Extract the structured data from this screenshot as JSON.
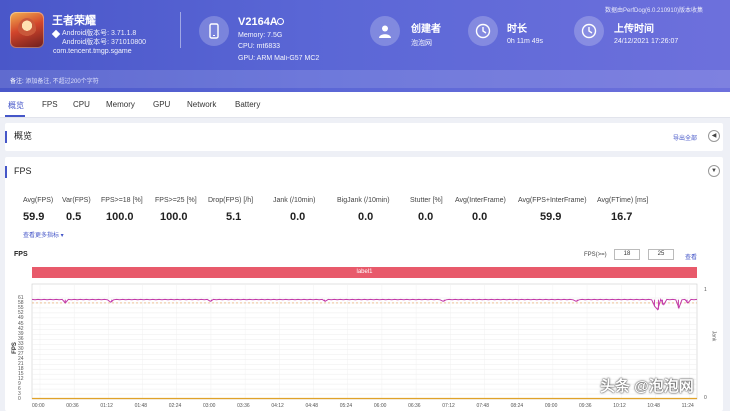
{
  "header": {
    "app_name": "王者荣耀",
    "android_version_line": "Android版本号: 3.71.1.8",
    "android_build_line": "Android版本号: 371010800",
    "package": "com.tencent.tmgp.sgame",
    "device_name": "V2164A",
    "memory": "Memory: 7.5G",
    "cpu": "CPU: mt6833",
    "gpu": "GPU: ARM Mali-G57 MC2",
    "creator_title": "创建者",
    "creator_value": "泡泡网",
    "duration_title": "时长",
    "duration_value": "0h 11m 49s",
    "upload_title": "上传时间",
    "upload_value": "24/12/2021 17:26:07",
    "perfdog_note": "数据由PerfDog(6.0.210910)版本收集",
    "remark_label": "备注:",
    "remark_placeholder": "添加备注, 不超过200个字符"
  },
  "tabs": [
    "概览",
    "FPS",
    "CPU",
    "Memory",
    "GPU",
    "Network",
    "Battery"
  ],
  "overview": {
    "title": "概览",
    "export_label": "导出全部",
    "toggle_glyph": "◀"
  },
  "fps_section": {
    "title": "FPS",
    "toggle_glyph": "▼",
    "metrics": [
      {
        "label": "Avg(FPS)",
        "value": "59.9"
      },
      {
        "label": "Var(FPS)",
        "value": "0.5"
      },
      {
        "label": "FPS>=18 [%]",
        "value": "100.0"
      },
      {
        "label": "FPS>=25 [%]",
        "value": "100.0"
      },
      {
        "label": "Drop(FPS) [/h]",
        "value": "5.1"
      },
      {
        "label": "Jank (/10min)",
        "value": "0.0"
      },
      {
        "label": "BigJank (/10min)",
        "value": "0.0"
      },
      {
        "label": "Stutter [%]",
        "value": "0.0"
      },
      {
        "label": "Avg(InterFrame)",
        "value": "0.0"
      },
      {
        "label": "Avg(FPS+InterFrame)",
        "value": "59.9"
      },
      {
        "label": "Avg(FTime) [ms]",
        "value": "16.7"
      }
    ],
    "more_link": "查看更多指标 ▾",
    "chart_title": "FPS",
    "filter_label": "FPS(>=)",
    "filter_value_1": "18",
    "filter_value_2": "25",
    "query_label": "查看",
    "band_label": "label1",
    "y_axis_label": "FPS",
    "right_axis_label": "Jank",
    "right_ticks": [
      "1",
      "0"
    ]
  },
  "chart_data": {
    "type": "line",
    "x_labels": [
      "00:00",
      "00:36",
      "01:12",
      "01:48",
      "02:24",
      "03:00",
      "03:36",
      "04:12",
      "04:48",
      "05:24",
      "06:00",
      "06:36",
      "07:12",
      "07:48",
      "08:24",
      "09:00",
      "09:36",
      "10:12",
      "10:48",
      "11:24"
    ],
    "y_ticks": [
      61,
      58,
      55,
      52,
      49,
      45,
      42,
      39,
      36,
      33,
      30,
      27,
      24,
      21,
      18,
      15,
      12,
      9,
      6,
      3,
      0
    ],
    "ylim": [
      0,
      61
    ],
    "series": [
      {
        "color": "#c23aa8",
        "base": 60,
        "dips": [
          {
            "x": 0.05,
            "value": 58
          },
          {
            "x": 0.12,
            "value": 58.5
          },
          {
            "x": 0.27,
            "value": 59
          },
          {
            "x": 0.44,
            "value": 59
          },
          {
            "x": 0.62,
            "value": 59
          },
          {
            "x": 0.82,
            "value": 59
          },
          {
            "x": 0.936,
            "value": 56
          },
          {
            "x": 0.942,
            "value": 54
          },
          {
            "x": 0.948,
            "value": 57
          },
          {
            "x": 0.972,
            "value": 55
          },
          {
            "x": 0.985,
            "value": 58
          }
        ]
      },
      {
        "color": "#e0a22a",
        "constant": 0
      }
    ],
    "threshold_line": {
      "value": 58,
      "color": "#e6a15c"
    }
  },
  "watermark": "头条 @泡泡网"
}
